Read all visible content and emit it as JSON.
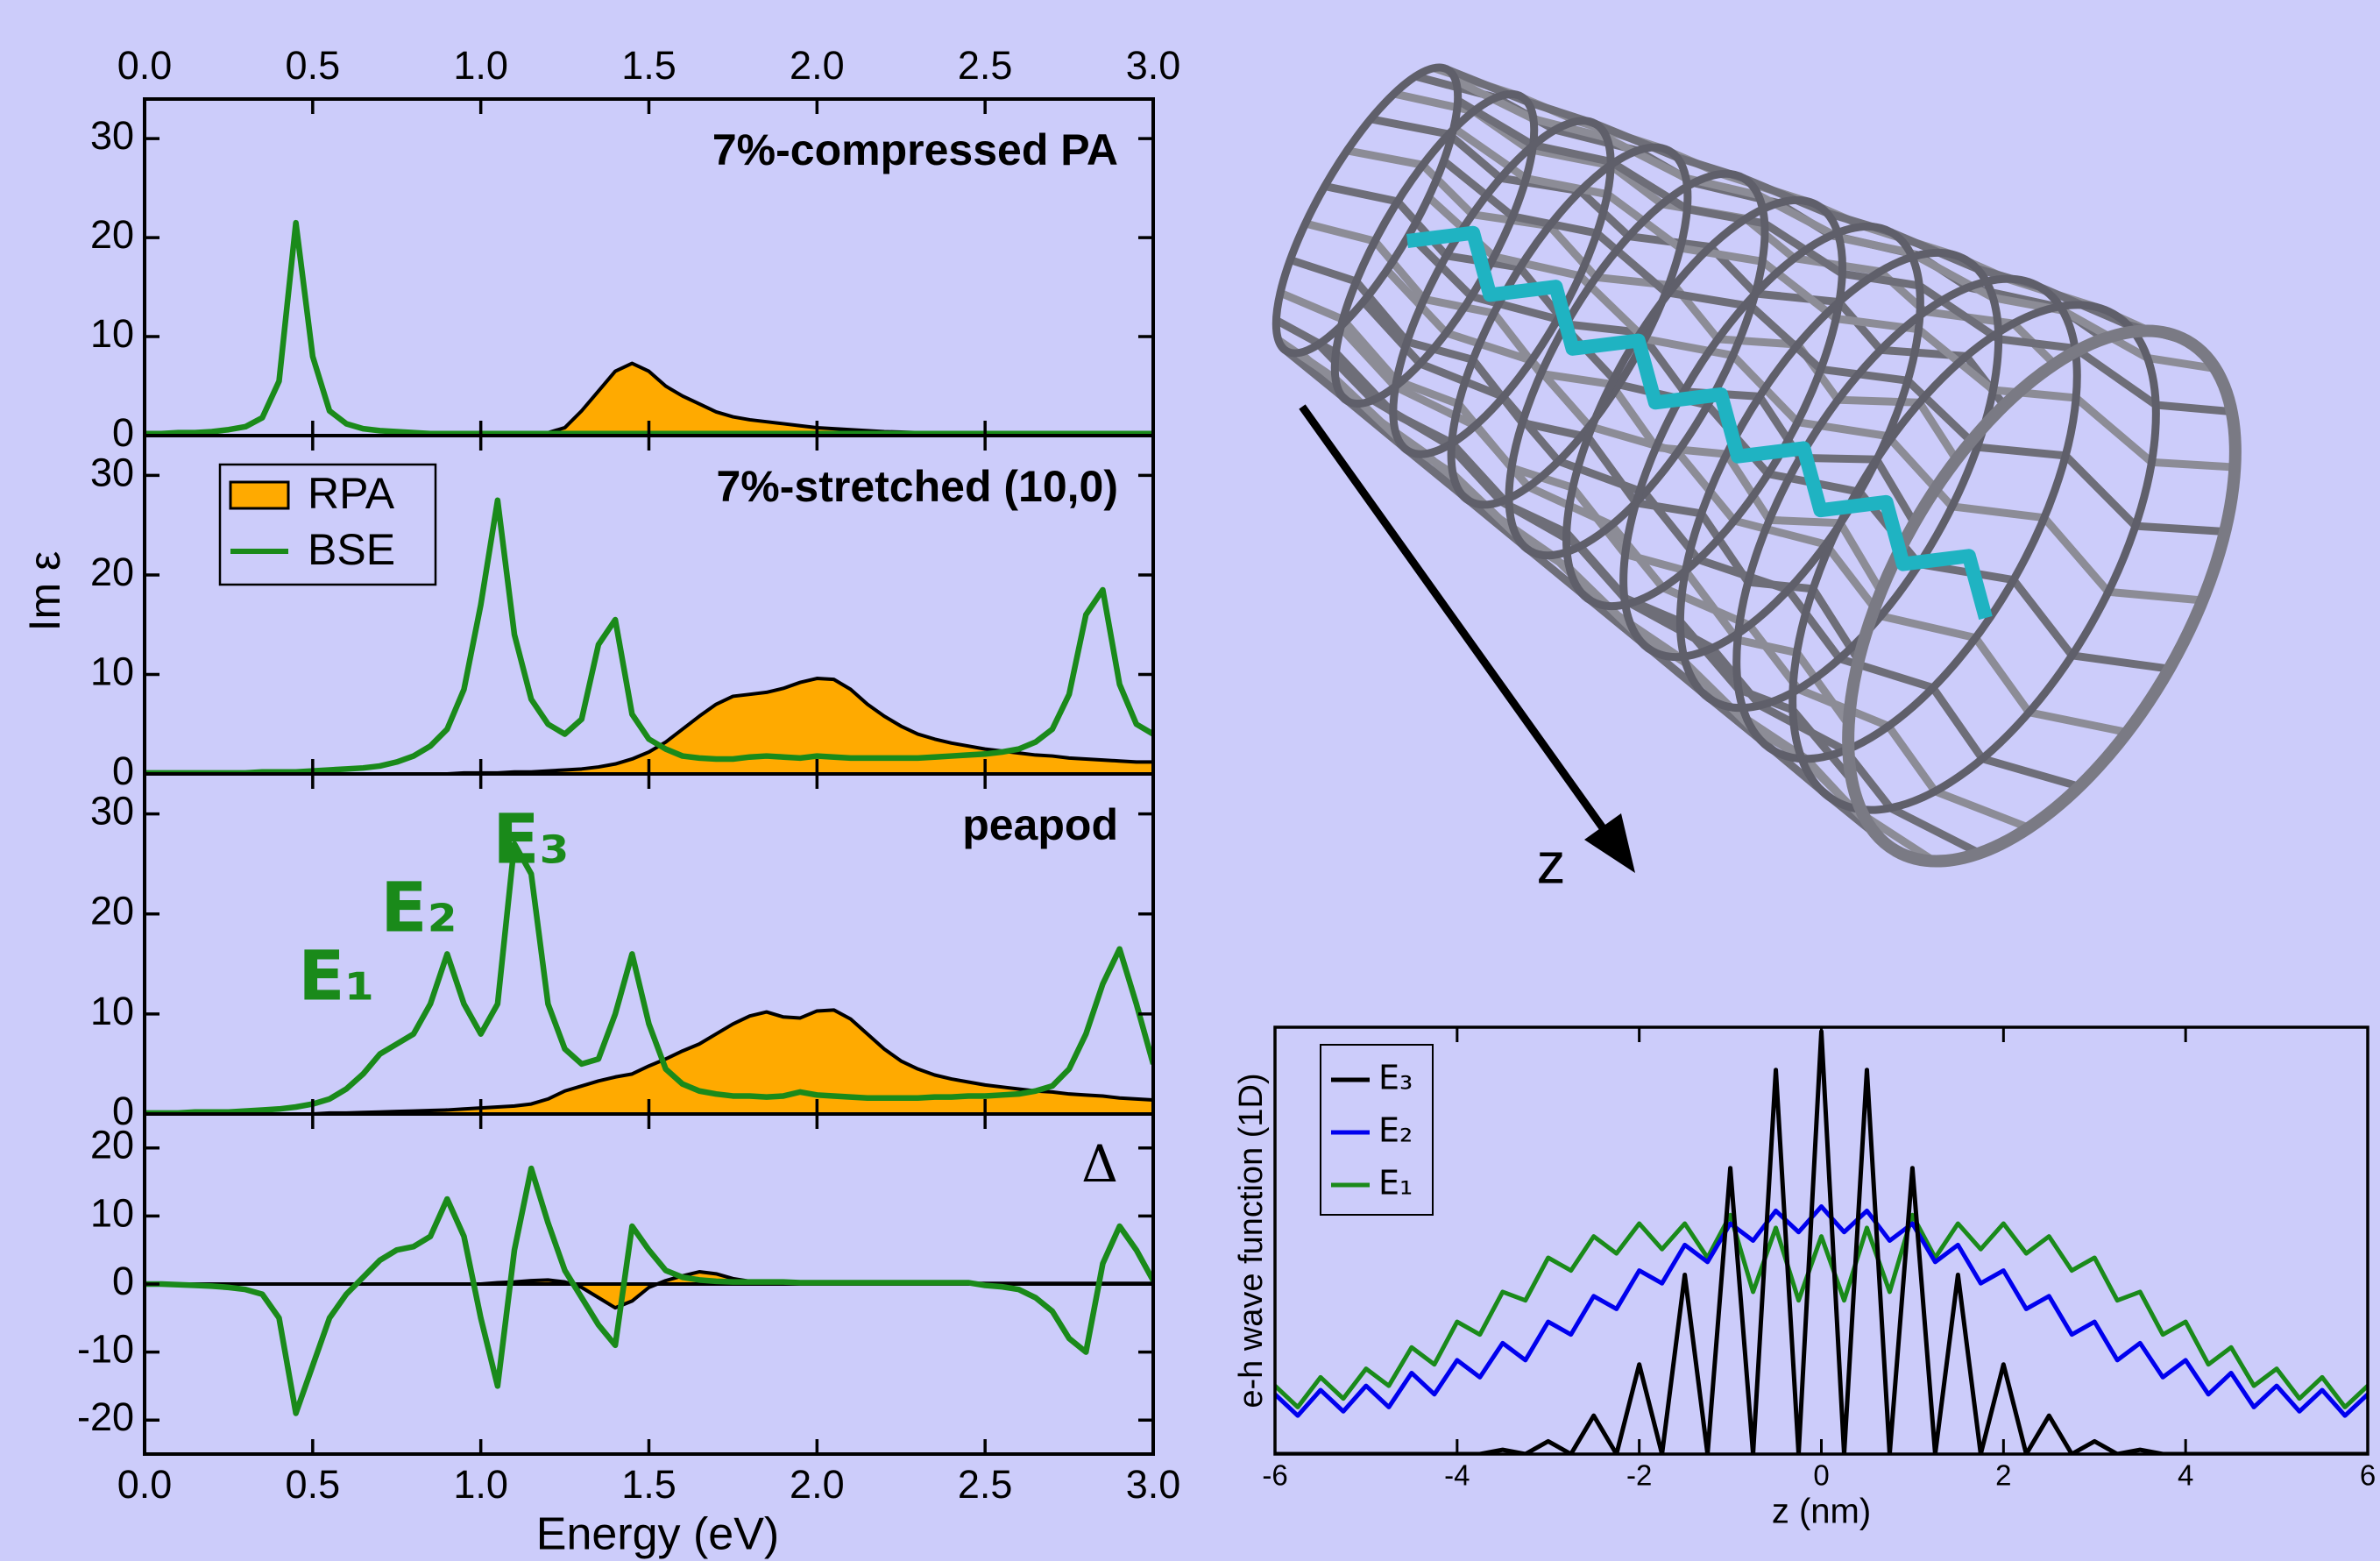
{
  "chart_data": [
    {
      "type": "line",
      "title": "7%-compressed PA",
      "x": [
        0,
        0.05,
        0.1,
        0.15,
        0.2,
        0.25,
        0.3,
        0.35,
        0.4,
        0.45,
        0.5,
        0.55,
        0.6,
        0.65,
        0.7,
        0.75,
        0.8,
        0.85,
        0.9,
        0.95,
        1,
        1.05,
        1.1,
        1.15,
        1.2,
        1.25,
        1.3,
        1.35,
        1.4,
        1.45,
        1.5,
        1.55,
        1.6,
        1.65,
        1.7,
        1.75,
        1.8,
        1.85,
        1.9,
        1.95,
        2,
        2.05,
        2.1,
        2.15,
        2.2,
        2.25,
        2.3,
        2.35,
        2.4,
        2.45,
        2.5,
        2.55,
        2.6,
        2.65,
        2.7,
        2.75,
        2.8,
        2.85,
        2.9,
        2.95,
        3
      ],
      "series": [
        {
          "color": "#ffaa00",
          "line_color": "#000000",
          "fill": true,
          "values": [
            0,
            0,
            0,
            0,
            0,
            0,
            0,
            0,
            0,
            0,
            0,
            0,
            0,
            0,
            0,
            0,
            0,
            0,
            0,
            0,
            0,
            0,
            0,
            0.1,
            0.3,
            0.8,
            2.5,
            4.5,
            6.5,
            7.3,
            6.5,
            5,
            4,
            3.2,
            2.4,
            1.9,
            1.6,
            1.4,
            1.2,
            1,
            0.8,
            0.7,
            0.6,
            0.5,
            0.4,
            0.35,
            0.3,
            0.3,
            0.25,
            0.2,
            0.2,
            0.2,
            0.2,
            0.2,
            0.15,
            0.15,
            0.1,
            0.1,
            0.1,
            0.1,
            0.1
          ]
        },
        {
          "color": "#1a8a1a",
          "values": [
            0.2,
            0.2,
            0.3,
            0.3,
            0.4,
            0.6,
            0.9,
            1.8,
            5.5,
            21.5,
            8,
            2.5,
            1.2,
            0.7,
            0.5,
            0.4,
            0.3,
            0.2,
            0.2,
            0.2,
            0.2,
            0.2,
            0.2,
            0.2,
            0.2,
            0.2,
            0.2,
            0.2,
            0.2,
            0.2,
            0.2,
            0.2,
            0.2,
            0.2,
            0.2,
            0.2,
            0.2,
            0.2,
            0.2,
            0.2,
            0.2,
            0.2,
            0.2,
            0.2,
            0.2,
            0.2,
            0.2,
            0.2,
            0.2,
            0.2,
            0.2,
            0.2,
            0.2,
            0.2,
            0.2,
            0.2,
            0.2,
            0.2,
            0.2,
            0.2,
            0.2
          ]
        }
      ],
      "xlim": [
        0,
        3
      ],
      "ylim": [
        0,
        34
      ],
      "xticks": [
        {
          "value": 0,
          "label": "0.0"
        },
        0.5,
        {
          "value": 1,
          "label": "1.0"
        },
        1.5,
        {
          "value": 2,
          "label": "2.0"
        },
        2.5,
        {
          "value": 3,
          "label": "3.0"
        }
      ],
      "yticks": [
        0,
        10,
        20,
        30
      ]
    },
    {
      "type": "line",
      "title": "7%-stretched (10,0)",
      "ylabel": "Im ε",
      "legend": "upper left",
      "x": [
        0,
        0.05,
        0.1,
        0.15,
        0.2,
        0.25,
        0.3,
        0.35,
        0.4,
        0.45,
        0.5,
        0.55,
        0.6,
        0.65,
        0.7,
        0.75,
        0.8,
        0.85,
        0.9,
        0.95,
        1,
        1.05,
        1.1,
        1.15,
        1.2,
        1.25,
        1.3,
        1.35,
        1.4,
        1.45,
        1.5,
        1.55,
        1.6,
        1.65,
        1.7,
        1.75,
        1.8,
        1.85,
        1.9,
        1.95,
        2,
        2.05,
        2.1,
        2.15,
        2.2,
        2.25,
        2.3,
        2.35,
        2.4,
        2.45,
        2.5,
        2.55,
        2.6,
        2.65,
        2.7,
        2.75,
        2.8,
        2.85,
        2.9,
        2.95,
        3
      ],
      "series": [
        {
          "name": "RPA",
          "color": "#ffaa00",
          "line_color": "#000000",
          "fill": true,
          "values": [
            0,
            0,
            0,
            0,
            0,
            0,
            0,
            0,
            0,
            0,
            0,
            0,
            0,
            0,
            0,
            0,
            0,
            0,
            0,
            0.1,
            0.1,
            0.1,
            0.2,
            0.2,
            0.3,
            0.4,
            0.5,
            0.7,
            1,
            1.5,
            2.2,
            3.2,
            4.5,
            5.8,
            7,
            7.8,
            8,
            8.2,
            8.6,
            9.2,
            9.6,
            9.5,
            8.5,
            7,
            5.8,
            4.8,
            4,
            3.5,
            3.1,
            2.8,
            2.5,
            2.3,
            2.1,
            1.9,
            1.8,
            1.6,
            1.5,
            1.4,
            1.3,
            1.2,
            1.2
          ]
        },
        {
          "name": "BSE",
          "color": "#1a8a1a",
          "values": [
            0.1,
            0.1,
            0.1,
            0.1,
            0.1,
            0.1,
            0.1,
            0.2,
            0.2,
            0.2,
            0.3,
            0.4,
            0.5,
            0.6,
            0.8,
            1.2,
            1.8,
            2.8,
            4.5,
            8.5,
            17,
            27.5,
            14,
            7.5,
            5,
            4,
            5.5,
            13,
            15.5,
            6,
            3.5,
            2.5,
            1.8,
            1.6,
            1.5,
            1.5,
            1.7,
            1.8,
            1.7,
            1.6,
            1.8,
            1.7,
            1.6,
            1.6,
            1.6,
            1.6,
            1.6,
            1.7,
            1.8,
            1.9,
            2,
            2.2,
            2.5,
            3.2,
            4.5,
            8,
            16,
            18.5,
            9,
            5,
            4
          ]
        }
      ],
      "xlim": [
        0,
        3
      ],
      "ylim": [
        0,
        34
      ],
      "yticks": [
        0,
        10,
        20,
        30
      ]
    },
    {
      "type": "line",
      "title": "peapod",
      "annotations": [
        "E₁",
        "E₂",
        "E₃"
      ],
      "x": [
        0,
        0.05,
        0.1,
        0.15,
        0.2,
        0.25,
        0.3,
        0.35,
        0.4,
        0.45,
        0.5,
        0.55,
        0.6,
        0.65,
        0.7,
        0.75,
        0.8,
        0.85,
        0.9,
        0.95,
        1,
        1.05,
        1.1,
        1.15,
        1.2,
        1.25,
        1.3,
        1.35,
        1.4,
        1.45,
        1.5,
        1.55,
        1.6,
        1.65,
        1.7,
        1.75,
        1.8,
        1.85,
        1.9,
        1.95,
        2,
        2.05,
        2.1,
        2.15,
        2.2,
        2.25,
        2.3,
        2.35,
        2.4,
        2.45,
        2.5,
        2.55,
        2.6,
        2.65,
        2.7,
        2.75,
        2.8,
        2.85,
        2.9,
        2.95,
        3
      ],
      "series": [
        {
          "color": "#ffaa00",
          "line_color": "#000000",
          "fill": true,
          "values": [
            0,
            0,
            0,
            0,
            0,
            0,
            0,
            0,
            0,
            0,
            0,
            0.1,
            0.1,
            0.15,
            0.2,
            0.25,
            0.3,
            0.35,
            0.4,
            0.5,
            0.6,
            0.7,
            0.8,
            1,
            1.5,
            2.3,
            2.8,
            3.3,
            3.7,
            4,
            4.8,
            5.5,
            6.3,
            7,
            8,
            9,
            9.8,
            10.2,
            9.7,
            9.6,
            10.3,
            10.4,
            9.5,
            8,
            6.5,
            5.3,
            4.5,
            3.9,
            3.5,
            3.2,
            2.9,
            2.7,
            2.5,
            2.3,
            2.2,
            2,
            1.9,
            1.8,
            1.6,
            1.5,
            1.4
          ]
        },
        {
          "color": "#1a8a1a",
          "values": [
            0.1,
            0.1,
            0.1,
            0.2,
            0.2,
            0.2,
            0.3,
            0.4,
            0.5,
            0.7,
            1,
            1.5,
            2.5,
            4,
            6,
            7,
            8,
            11,
            16,
            11,
            8,
            11,
            27,
            24,
            11,
            6.5,
            5,
            5.5,
            10,
            16,
            9,
            4.5,
            3,
            2.3,
            2,
            1.8,
            1.8,
            1.7,
            1.8,
            2.2,
            1.9,
            1.8,
            1.7,
            1.6,
            1.6,
            1.6,
            1.6,
            1.7,
            1.7,
            1.8,
            1.8,
            1.9,
            2,
            2.3,
            2.8,
            4.5,
            8,
            13,
            16.5,
            11,
            5
          ]
        }
      ],
      "xlim": [
        0,
        3
      ],
      "ylim": [
        0,
        34
      ],
      "yticks": [
        0,
        10,
        20,
        30
      ]
    },
    {
      "type": "line",
      "title": "Δ",
      "xlabel": "Energy (eV)",
      "x": [
        0,
        0.05,
        0.1,
        0.15,
        0.2,
        0.25,
        0.3,
        0.35,
        0.4,
        0.45,
        0.5,
        0.55,
        0.6,
        0.65,
        0.7,
        0.75,
        0.8,
        0.85,
        0.9,
        0.95,
        1,
        1.05,
        1.1,
        1.15,
        1.2,
        1.25,
        1.3,
        1.35,
        1.4,
        1.45,
        1.5,
        1.55,
        1.6,
        1.65,
        1.7,
        1.75,
        1.8,
        1.85,
        1.9,
        1.95,
        2,
        2.05,
        2.1,
        2.15,
        2.2,
        2.25,
        2.3,
        2.35,
        2.4,
        2.45,
        2.5,
        2.55,
        2.6,
        2.65,
        2.7,
        2.75,
        2.8,
        2.85,
        2.9,
        2.95,
        3
      ],
      "series": [
        {
          "color": "#ffaa00",
          "line_color": "#000000",
          "fill": true,
          "values": [
            0,
            0,
            0,
            0,
            0,
            0,
            0,
            0,
            0,
            0,
            0,
            0,
            0,
            0,
            0,
            0,
            0,
            0,
            0,
            0,
            0,
            0.2,
            0.3,
            0.5,
            0.6,
            0.3,
            -0.5,
            -2,
            -3.5,
            -2.5,
            -0.5,
            0.5,
            1.2,
            1.8,
            1.5,
            0.8,
            0.4,
            0.3,
            0.2,
            0.1,
            0.1,
            0.1,
            0.1,
            0.1,
            0.1,
            0.1,
            0.1,
            0.1,
            0.1,
            0.1,
            0.1,
            0.1,
            0.1,
            0.1,
            0.1,
            0.1,
            0.1,
            0.1,
            0.1,
            0.1,
            0.1
          ]
        },
        {
          "color": "#1a8a1a",
          "values": [
            0,
            0,
            -0.1,
            -0.2,
            -0.3,
            -0.5,
            -0.8,
            -1.5,
            -5,
            -19,
            -12,
            -5,
            -1.5,
            1,
            3.5,
            5,
            5.5,
            7,
            12.5,
            7,
            -5,
            -15,
            5,
            17,
            9,
            2,
            -2,
            -6,
            -9,
            8.5,
            5,
            2,
            1,
            0.6,
            0.4,
            0.3,
            0.3,
            0.3,
            0.3,
            0.2,
            0.2,
            0.2,
            0.2,
            0.2,
            0.2,
            0.2,
            0.2,
            0.2,
            0.2,
            0.2,
            -0.2,
            -0.4,
            -0.8,
            -2,
            -4,
            -8,
            -10,
            3,
            8.5,
            5,
            0.5
          ]
        }
      ],
      "xlim": [
        0,
        3
      ],
      "ylim": [
        -25,
        25
      ],
      "xticks": [
        {
          "value": 0,
          "label": "0.0"
        },
        0.5,
        {
          "value": 1,
          "label": "1.0"
        },
        1.5,
        {
          "value": 2,
          "label": "2.0"
        },
        2.5,
        {
          "value": 3,
          "label": "3.0"
        }
      ],
      "yticks": [
        -20,
        -10,
        0,
        10,
        20
      ]
    },
    {
      "type": "line",
      "xlabel": "z (nm)",
      "ylabel": "e-h wave function (1D)",
      "legend": "upper left",
      "x": [
        -6,
        -5.75,
        -5.5,
        -5.25,
        -5,
        -4.75,
        -4.5,
        -4.25,
        -4,
        -3.75,
        -3.5,
        -3.25,
        -3,
        -2.75,
        -2.5,
        -2.25,
        -2,
        -1.75,
        -1.5,
        -1.25,
        -1,
        -0.75,
        -0.5,
        -0.25,
        0,
        0.25,
        0.5,
        0.75,
        1,
        1.25,
        1.5,
        1.75,
        2,
        2.25,
        2.5,
        2.75,
        3,
        3.25,
        3.5,
        3.75,
        4,
        4.25,
        4.5,
        4.75,
        5,
        5.25,
        5.5,
        5.75,
        6
      ],
      "series": [
        {
          "name": "E₃",
          "color": "#000000",
          "values": [
            0,
            0,
            0,
            0,
            0,
            0,
            0,
            0,
            0,
            0,
            0.01,
            0,
            0.03,
            0,
            0.09,
            0,
            0.21,
            0,
            0.42,
            0,
            0.67,
            0,
            0.9,
            0,
            0.99,
            0,
            0.9,
            0,
            0.67,
            0,
            0.42,
            0,
            0.21,
            0,
            0.09,
            0,
            0.03,
            0,
            0.01,
            0,
            0,
            0,
            0,
            0,
            0,
            0,
            0,
            0,
            0
          ]
        },
        {
          "name": "E₂",
          "color": "#0000ee",
          "values": [
            0.14,
            0.09,
            0.15,
            0.1,
            0.16,
            0.11,
            0.19,
            0.14,
            0.22,
            0.18,
            0.26,
            0.22,
            0.31,
            0.28,
            0.37,
            0.34,
            0.43,
            0.4,
            0.49,
            0.45,
            0.54,
            0.5,
            0.57,
            0.52,
            0.58,
            0.52,
            0.57,
            0.5,
            0.54,
            0.45,
            0.49,
            0.4,
            0.43,
            0.34,
            0.37,
            0.28,
            0.31,
            0.22,
            0.26,
            0.18,
            0.22,
            0.14,
            0.19,
            0.11,
            0.16,
            0.1,
            0.15,
            0.09,
            0.14
          ]
        },
        {
          "name": "E₁",
          "color": "#1a8a1a",
          "values": [
            0.16,
            0.11,
            0.18,
            0.13,
            0.2,
            0.16,
            0.25,
            0.21,
            0.31,
            0.28,
            0.38,
            0.36,
            0.46,
            0.43,
            0.51,
            0.47,
            0.54,
            0.48,
            0.54,
            0.46,
            0.56,
            0.38,
            0.53,
            0.36,
            0.51,
            0.36,
            0.53,
            0.38,
            0.56,
            0.46,
            0.54,
            0.48,
            0.54,
            0.47,
            0.51,
            0.43,
            0.46,
            0.36,
            0.38,
            0.28,
            0.31,
            0.21,
            0.25,
            0.16,
            0.2,
            0.13,
            0.18,
            0.11,
            0.16
          ]
        }
      ],
      "xlim": [
        -6,
        6
      ],
      "ylim": [
        0,
        1
      ],
      "xticks": [
        -6,
        -4,
        -2,
        0,
        2,
        4,
        6
      ]
    }
  ],
  "illustration": {
    "axis_label": "z"
  }
}
